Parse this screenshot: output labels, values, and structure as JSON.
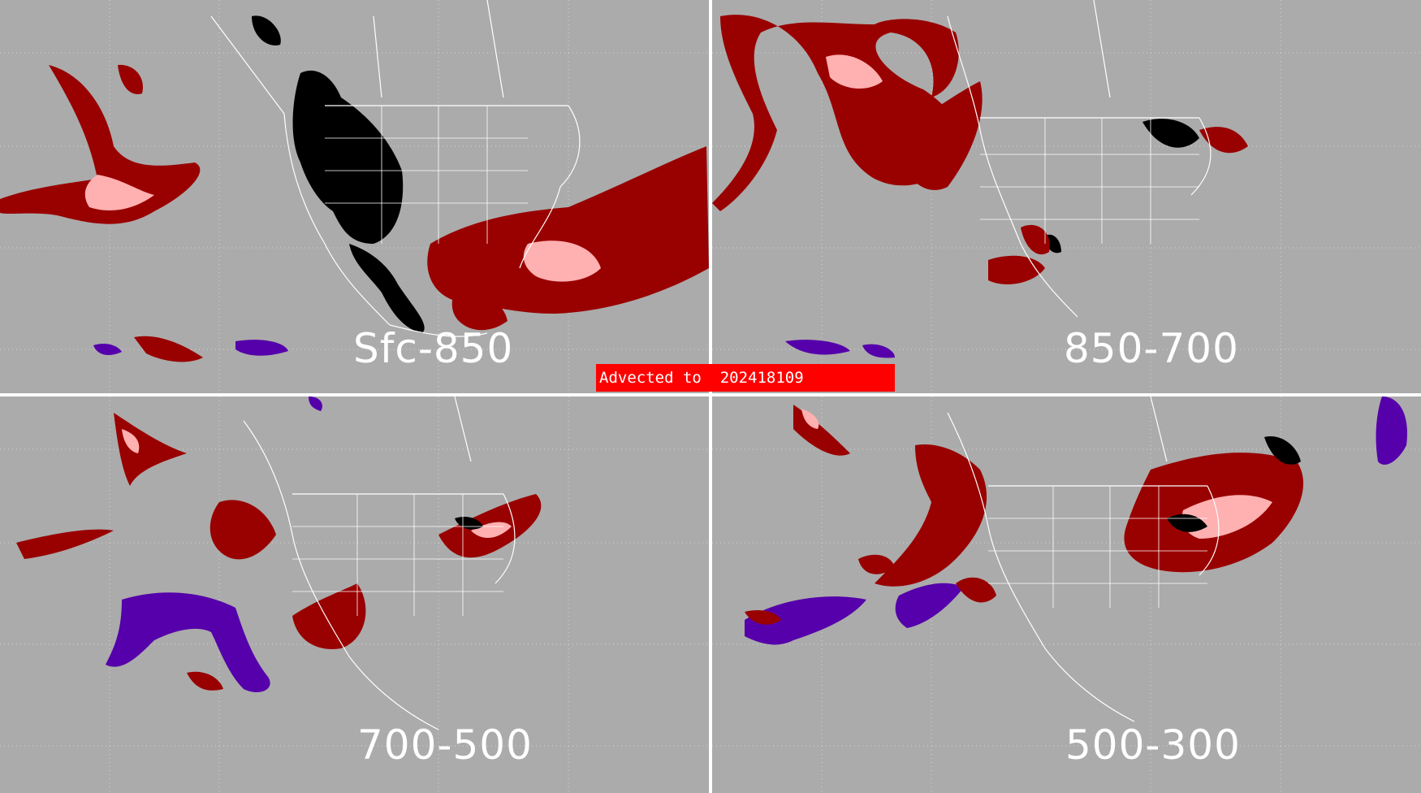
{
  "colors": {
    "background": "#ababab",
    "dark_red": "#990000",
    "pink": "#ffb0b0",
    "black": "#000000",
    "purple": "#5500aa",
    "bright_red": "#ff0000",
    "borders": "#ffffff"
  },
  "panels": [
    {
      "id": "top-left",
      "label": "Sfc-850"
    },
    {
      "id": "top-right",
      "label": "850-700"
    },
    {
      "id": "bottom-left",
      "label": "700-500"
    },
    {
      "id": "bottom-right",
      "label": "500-300"
    }
  ],
  "banner": {
    "text": "Advected to  202418109"
  }
}
